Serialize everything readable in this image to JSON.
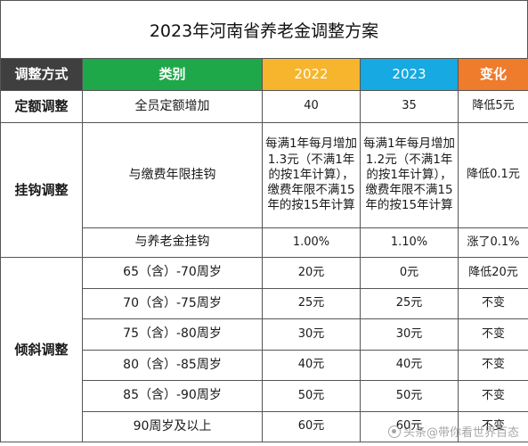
{
  "title": "2023年河南省养老金调整方案",
  "headers": {
    "method": "调整方式",
    "category": "类别",
    "y2022": "2022",
    "y2023": "2023",
    "change": "变化"
  },
  "colors": {
    "method_header": "#3f3f3f",
    "category_header": "#1fa84a",
    "y2022_header": "#f6b52d",
    "y2023_header": "#17a9e1",
    "change_header": "#ef7b2c"
  },
  "fixed": {
    "method": "定额调整",
    "category": "全员定额增加",
    "y2022": "40",
    "y2023": "35",
    "change": "降低5元"
  },
  "linked": {
    "method": "挂钩调整",
    "years": {
      "category": "与缴费年限挂钩",
      "y2022": "每满1年每月增加 1.3元（不满1年的按1年计算），缴费年限不满15年的按15年计算",
      "y2023": "每满1年每月增加 1.2元（不满1年的按1年计算），缴费年限不满15年的按15年计算",
      "change": "降低0.1元"
    },
    "pension": {
      "category": "与养老金挂钩",
      "y2022": "1.00%",
      "y2023": "1.10%",
      "change": "涨了0.1%"
    }
  },
  "tilt": {
    "method": "倾斜调整",
    "rows": [
      {
        "category": "65（含）-70周岁",
        "y2022": "20元",
        "y2023": "0元",
        "change": "降低20元"
      },
      {
        "category": "70（含）-75周岁",
        "y2022": "25元",
        "y2023": "25元",
        "change": "不变"
      },
      {
        "category": "75（含）-80周岁",
        "y2022": "30元",
        "y2023": "30元",
        "change": "不变"
      },
      {
        "category": "80（含）-85周岁",
        "y2022": "40元",
        "y2023": "40元",
        "change": "不变"
      },
      {
        "category": "85（含）-90周岁",
        "y2022": "50元",
        "y2023": "50元",
        "change": "不变"
      },
      {
        "category": "90周岁及以上",
        "y2022": "60元",
        "y2023": "60元",
        "change": "不变"
      }
    ]
  },
  "watermark": "头条@带你看世界百态",
  "watermark_icon": "camera-icon"
}
